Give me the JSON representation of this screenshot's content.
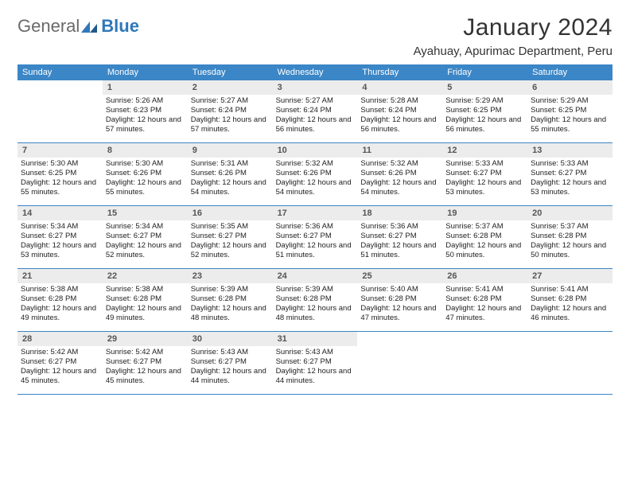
{
  "brand": {
    "a": "General",
    "b": "Blue"
  },
  "title": "January 2024",
  "location": "Ayahuay, Apurimac Department, Peru",
  "colors": {
    "header_bg": "#3b86c6",
    "header_text": "#ffffff",
    "daynum_bg": "#ececec",
    "daynum_text": "#555555",
    "rule": "#3b86c6",
    "logo_gray": "#6a6a6a",
    "logo_blue": "#2f78b9"
  },
  "dow": [
    "Sunday",
    "Monday",
    "Tuesday",
    "Wednesday",
    "Thursday",
    "Friday",
    "Saturday"
  ],
  "first_dow": 1,
  "days": [
    {
      "n": 1,
      "sr": "5:26 AM",
      "ss": "6:23 PM",
      "dl": "12 hours and 57 minutes."
    },
    {
      "n": 2,
      "sr": "5:27 AM",
      "ss": "6:24 PM",
      "dl": "12 hours and 57 minutes."
    },
    {
      "n": 3,
      "sr": "5:27 AM",
      "ss": "6:24 PM",
      "dl": "12 hours and 56 minutes."
    },
    {
      "n": 4,
      "sr": "5:28 AM",
      "ss": "6:24 PM",
      "dl": "12 hours and 56 minutes."
    },
    {
      "n": 5,
      "sr": "5:29 AM",
      "ss": "6:25 PM",
      "dl": "12 hours and 56 minutes."
    },
    {
      "n": 6,
      "sr": "5:29 AM",
      "ss": "6:25 PM",
      "dl": "12 hours and 55 minutes."
    },
    {
      "n": 7,
      "sr": "5:30 AM",
      "ss": "6:25 PM",
      "dl": "12 hours and 55 minutes."
    },
    {
      "n": 8,
      "sr": "5:30 AM",
      "ss": "6:26 PM",
      "dl": "12 hours and 55 minutes."
    },
    {
      "n": 9,
      "sr": "5:31 AM",
      "ss": "6:26 PM",
      "dl": "12 hours and 54 minutes."
    },
    {
      "n": 10,
      "sr": "5:32 AM",
      "ss": "6:26 PM",
      "dl": "12 hours and 54 minutes."
    },
    {
      "n": 11,
      "sr": "5:32 AM",
      "ss": "6:26 PM",
      "dl": "12 hours and 54 minutes."
    },
    {
      "n": 12,
      "sr": "5:33 AM",
      "ss": "6:27 PM",
      "dl": "12 hours and 53 minutes."
    },
    {
      "n": 13,
      "sr": "5:33 AM",
      "ss": "6:27 PM",
      "dl": "12 hours and 53 minutes."
    },
    {
      "n": 14,
      "sr": "5:34 AM",
      "ss": "6:27 PM",
      "dl": "12 hours and 53 minutes."
    },
    {
      "n": 15,
      "sr": "5:34 AM",
      "ss": "6:27 PM",
      "dl": "12 hours and 52 minutes."
    },
    {
      "n": 16,
      "sr": "5:35 AM",
      "ss": "6:27 PM",
      "dl": "12 hours and 52 minutes."
    },
    {
      "n": 17,
      "sr": "5:36 AM",
      "ss": "6:27 PM",
      "dl": "12 hours and 51 minutes."
    },
    {
      "n": 18,
      "sr": "5:36 AM",
      "ss": "6:27 PM",
      "dl": "12 hours and 51 minutes."
    },
    {
      "n": 19,
      "sr": "5:37 AM",
      "ss": "6:28 PM",
      "dl": "12 hours and 50 minutes."
    },
    {
      "n": 20,
      "sr": "5:37 AM",
      "ss": "6:28 PM",
      "dl": "12 hours and 50 minutes."
    },
    {
      "n": 21,
      "sr": "5:38 AM",
      "ss": "6:28 PM",
      "dl": "12 hours and 49 minutes."
    },
    {
      "n": 22,
      "sr": "5:38 AM",
      "ss": "6:28 PM",
      "dl": "12 hours and 49 minutes."
    },
    {
      "n": 23,
      "sr": "5:39 AM",
      "ss": "6:28 PM",
      "dl": "12 hours and 48 minutes."
    },
    {
      "n": 24,
      "sr": "5:39 AM",
      "ss": "6:28 PM",
      "dl": "12 hours and 48 minutes."
    },
    {
      "n": 25,
      "sr": "5:40 AM",
      "ss": "6:28 PM",
      "dl": "12 hours and 47 minutes."
    },
    {
      "n": 26,
      "sr": "5:41 AM",
      "ss": "6:28 PM",
      "dl": "12 hours and 47 minutes."
    },
    {
      "n": 27,
      "sr": "5:41 AM",
      "ss": "6:28 PM",
      "dl": "12 hours and 46 minutes."
    },
    {
      "n": 28,
      "sr": "5:42 AM",
      "ss": "6:27 PM",
      "dl": "12 hours and 45 minutes."
    },
    {
      "n": 29,
      "sr": "5:42 AM",
      "ss": "6:27 PM",
      "dl": "12 hours and 45 minutes."
    },
    {
      "n": 30,
      "sr": "5:43 AM",
      "ss": "6:27 PM",
      "dl": "12 hours and 44 minutes."
    },
    {
      "n": 31,
      "sr": "5:43 AM",
      "ss": "6:27 PM",
      "dl": "12 hours and 44 minutes."
    }
  ],
  "labels": {
    "sunrise": "Sunrise:",
    "sunset": "Sunset:",
    "daylight": "Daylight:"
  }
}
